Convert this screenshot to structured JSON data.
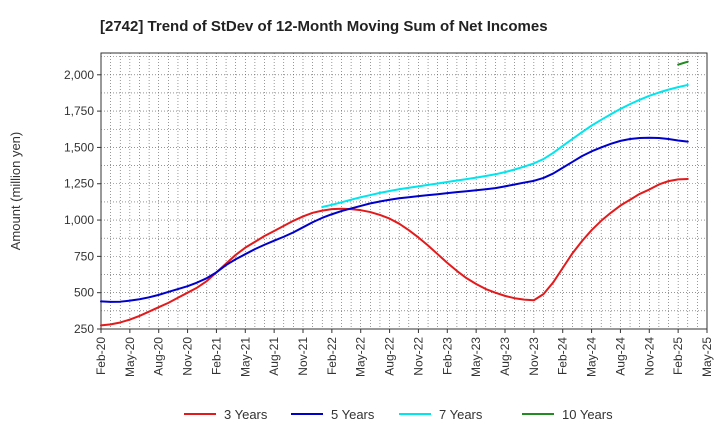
{
  "chart_data": {
    "type": "line",
    "title": "[2742]  Trend of StDev of 12-Month Moving Sum of Net Incomes",
    "ylabel": "Amount (million yen)",
    "xlabel": "",
    "x_ticks": [
      "Feb-20",
      "May-20",
      "Aug-20",
      "Nov-20",
      "Feb-21",
      "May-21",
      "Aug-21",
      "Nov-21",
      "Feb-22",
      "May-22",
      "Aug-22",
      "Nov-22",
      "Feb-23",
      "May-23",
      "Aug-23",
      "Nov-23",
      "Feb-24",
      "May-24",
      "Aug-24",
      "Nov-24",
      "Feb-25",
      "May-25"
    ],
    "y_ticks": [
      "250",
      "500",
      "750",
      "1,000",
      "1,250",
      "1,500",
      "1,750",
      "2,000"
    ],
    "ylim": [
      250,
      2150
    ],
    "grid": true,
    "legend_position": "bottom",
    "series": [
      {
        "name": "3 Years",
        "color": "#e31a1c",
        "points": [
          [
            "2020-02",
            275
          ],
          [
            "2020-03",
            282
          ],
          [
            "2020-04",
            295
          ],
          [
            "2020-05",
            315
          ],
          [
            "2020-06",
            340
          ],
          [
            "2020-07",
            370
          ],
          [
            "2020-08",
            400
          ],
          [
            "2020-09",
            430
          ],
          [
            "2020-10",
            465
          ],
          [
            "2020-11",
            500
          ],
          [
            "2020-12",
            535
          ],
          [
            "2021-01",
            580
          ],
          [
            "2021-02",
            640
          ],
          [
            "2021-03",
            700
          ],
          [
            "2021-04",
            760
          ],
          [
            "2021-05",
            810
          ],
          [
            "2021-06",
            850
          ],
          [
            "2021-07",
            890
          ],
          [
            "2021-08",
            925
          ],
          [
            "2021-09",
            960
          ],
          [
            "2021-10",
            995
          ],
          [
            "2021-11",
            1025
          ],
          [
            "2021-12",
            1050
          ],
          [
            "2022-01",
            1065
          ],
          [
            "2022-02",
            1075
          ],
          [
            "2022-03",
            1078
          ],
          [
            "2022-04",
            1075
          ],
          [
            "2022-05",
            1068
          ],
          [
            "2022-06",
            1055
          ],
          [
            "2022-07",
            1035
          ],
          [
            "2022-08",
            1010
          ],
          [
            "2022-09",
            975
          ],
          [
            "2022-10",
            930
          ],
          [
            "2022-11",
            880
          ],
          [
            "2022-12",
            825
          ],
          [
            "2023-01",
            765
          ],
          [
            "2023-02",
            705
          ],
          [
            "2023-03",
            650
          ],
          [
            "2023-04",
            600
          ],
          [
            "2023-05",
            560
          ],
          [
            "2023-06",
            525
          ],
          [
            "2023-07",
            500
          ],
          [
            "2023-08",
            478
          ],
          [
            "2023-09",
            462
          ],
          [
            "2023-10",
            452
          ],
          [
            "2023-11",
            448
          ],
          [
            "2023-12",
            490
          ],
          [
            "2024-01",
            570
          ],
          [
            "2024-02",
            670
          ],
          [
            "2024-03",
            770
          ],
          [
            "2024-04",
            855
          ],
          [
            "2024-05",
            930
          ],
          [
            "2024-06",
            995
          ],
          [
            "2024-07",
            1050
          ],
          [
            "2024-08",
            1100
          ],
          [
            "2024-09",
            1140
          ],
          [
            "2024-10",
            1180
          ],
          [
            "2024-11",
            1210
          ],
          [
            "2024-12",
            1245
          ],
          [
            "2025-01",
            1268
          ],
          [
            "2025-02",
            1280
          ],
          [
            "2025-03",
            1283
          ]
        ]
      },
      {
        "name": "5 Years",
        "color": "#0000cc",
        "points": [
          [
            "2020-02",
            440
          ],
          [
            "2020-03",
            437
          ],
          [
            "2020-04",
            438
          ],
          [
            "2020-05",
            445
          ],
          [
            "2020-06",
            455
          ],
          [
            "2020-07",
            468
          ],
          [
            "2020-08",
            485
          ],
          [
            "2020-09",
            505
          ],
          [
            "2020-10",
            525
          ],
          [
            "2020-11",
            545
          ],
          [
            "2020-12",
            570
          ],
          [
            "2021-01",
            600
          ],
          [
            "2021-02",
            640
          ],
          [
            "2021-03",
            690
          ],
          [
            "2021-04",
            730
          ],
          [
            "2021-05",
            765
          ],
          [
            "2021-06",
            800
          ],
          [
            "2021-07",
            830
          ],
          [
            "2021-08",
            858
          ],
          [
            "2021-09",
            885
          ],
          [
            "2021-10",
            915
          ],
          [
            "2021-11",
            950
          ],
          [
            "2021-12",
            985
          ],
          [
            "2022-01",
            1015
          ],
          [
            "2022-02",
            1040
          ],
          [
            "2022-03",
            1062
          ],
          [
            "2022-04",
            1080
          ],
          [
            "2022-05",
            1097
          ],
          [
            "2022-06",
            1115
          ],
          [
            "2022-07",
            1128
          ],
          [
            "2022-08",
            1140
          ],
          [
            "2022-09",
            1150
          ],
          [
            "2022-10",
            1157
          ],
          [
            "2022-11",
            1165
          ],
          [
            "2022-12",
            1172
          ],
          [
            "2023-01",
            1178
          ],
          [
            "2023-02",
            1185
          ],
          [
            "2023-03",
            1192
          ],
          [
            "2023-04",
            1198
          ],
          [
            "2023-05",
            1205
          ],
          [
            "2023-06",
            1212
          ],
          [
            "2023-07",
            1220
          ],
          [
            "2023-08",
            1232
          ],
          [
            "2023-09",
            1245
          ],
          [
            "2023-10",
            1258
          ],
          [
            "2023-11",
            1270
          ],
          [
            "2023-12",
            1290
          ],
          [
            "2024-01",
            1320
          ],
          [
            "2024-02",
            1360
          ],
          [
            "2024-03",
            1400
          ],
          [
            "2024-04",
            1440
          ],
          [
            "2024-05",
            1473
          ],
          [
            "2024-06",
            1500
          ],
          [
            "2024-07",
            1525
          ],
          [
            "2024-08",
            1545
          ],
          [
            "2024-09",
            1558
          ],
          [
            "2024-10",
            1565
          ],
          [
            "2024-11",
            1567
          ],
          [
            "2024-12",
            1565
          ],
          [
            "2025-01",
            1558
          ],
          [
            "2025-02",
            1548
          ],
          [
            "2025-03",
            1540
          ]
        ]
      },
      {
        "name": "7 Years",
        "color": "#00e5ee",
        "points": [
          [
            "2022-01",
            1090
          ],
          [
            "2022-02",
            1105
          ],
          [
            "2022-03",
            1122
          ],
          [
            "2022-04",
            1140
          ],
          [
            "2022-05",
            1157
          ],
          [
            "2022-06",
            1172
          ],
          [
            "2022-07",
            1187
          ],
          [
            "2022-08",
            1200
          ],
          [
            "2022-09",
            1212
          ],
          [
            "2022-10",
            1222
          ],
          [
            "2022-11",
            1232
          ],
          [
            "2022-12",
            1242
          ],
          [
            "2023-01",
            1252
          ],
          [
            "2023-02",
            1262
          ],
          [
            "2023-03",
            1272
          ],
          [
            "2023-04",
            1282
          ],
          [
            "2023-05",
            1292
          ],
          [
            "2023-06",
            1303
          ],
          [
            "2023-07",
            1315
          ],
          [
            "2023-08",
            1330
          ],
          [
            "2023-09",
            1348
          ],
          [
            "2023-10",
            1368
          ],
          [
            "2023-11",
            1390
          ],
          [
            "2023-12",
            1420
          ],
          [
            "2024-01",
            1462
          ],
          [
            "2024-02",
            1510
          ],
          [
            "2024-03",
            1558
          ],
          [
            "2024-04",
            1605
          ],
          [
            "2024-05",
            1650
          ],
          [
            "2024-06",
            1690
          ],
          [
            "2024-07",
            1728
          ],
          [
            "2024-08",
            1765
          ],
          [
            "2024-09",
            1798
          ],
          [
            "2024-10",
            1828
          ],
          [
            "2024-11",
            1855
          ],
          [
            "2024-12",
            1878
          ],
          [
            "2025-01",
            1898
          ],
          [
            "2025-02",
            1915
          ],
          [
            "2025-03",
            1930
          ]
        ]
      },
      {
        "name": "10 Years",
        "color": "#228b22",
        "points": [
          [
            "2025-02",
            2070
          ],
          [
            "2025-03",
            2090
          ]
        ]
      }
    ]
  }
}
